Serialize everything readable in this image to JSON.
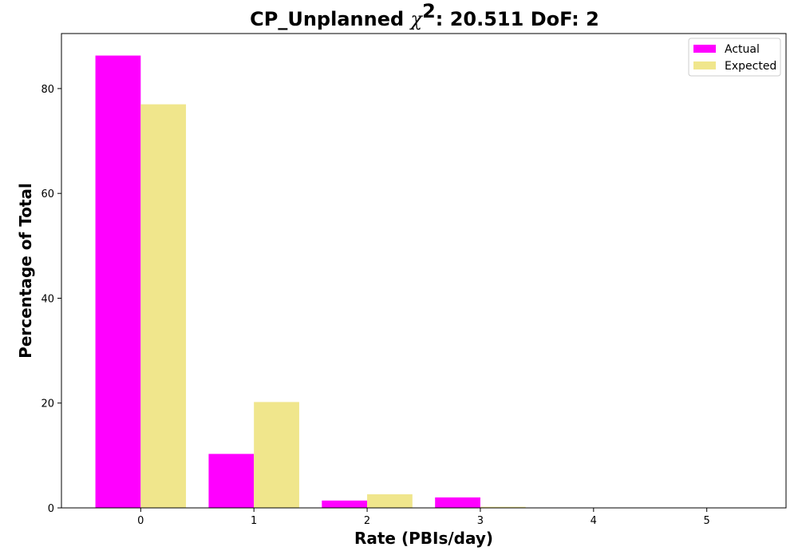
{
  "chart_data": {
    "type": "bar",
    "title": {
      "prefix": "CP_Unplanned ",
      "symbol": "χ",
      "superscript": "2",
      "suffix": ": 20.511 DoF: 2"
    },
    "xlabel": "Rate (PBIs/day)",
    "ylabel": "Percentage of Total",
    "categories": [
      "0",
      "1",
      "2",
      "3",
      "4",
      "5"
    ],
    "x_values": [
      0,
      1,
      2,
      3,
      4,
      5
    ],
    "xlim": [
      -0.7,
      5.7
    ],
    "ylim": [
      0,
      90.5
    ],
    "yticks": [
      0,
      20,
      40,
      60,
      80
    ],
    "legend_position": "top-right",
    "grid": false,
    "series": [
      {
        "name": "Actual",
        "color": "#ff00ff",
        "values": [
          86.3,
          10.3,
          1.4,
          2.0,
          0,
          0
        ]
      },
      {
        "name": "Expected",
        "color": "#f0e68c",
        "values": [
          77.0,
          20.2,
          2.6,
          0.2,
          0,
          0
        ]
      }
    ]
  }
}
